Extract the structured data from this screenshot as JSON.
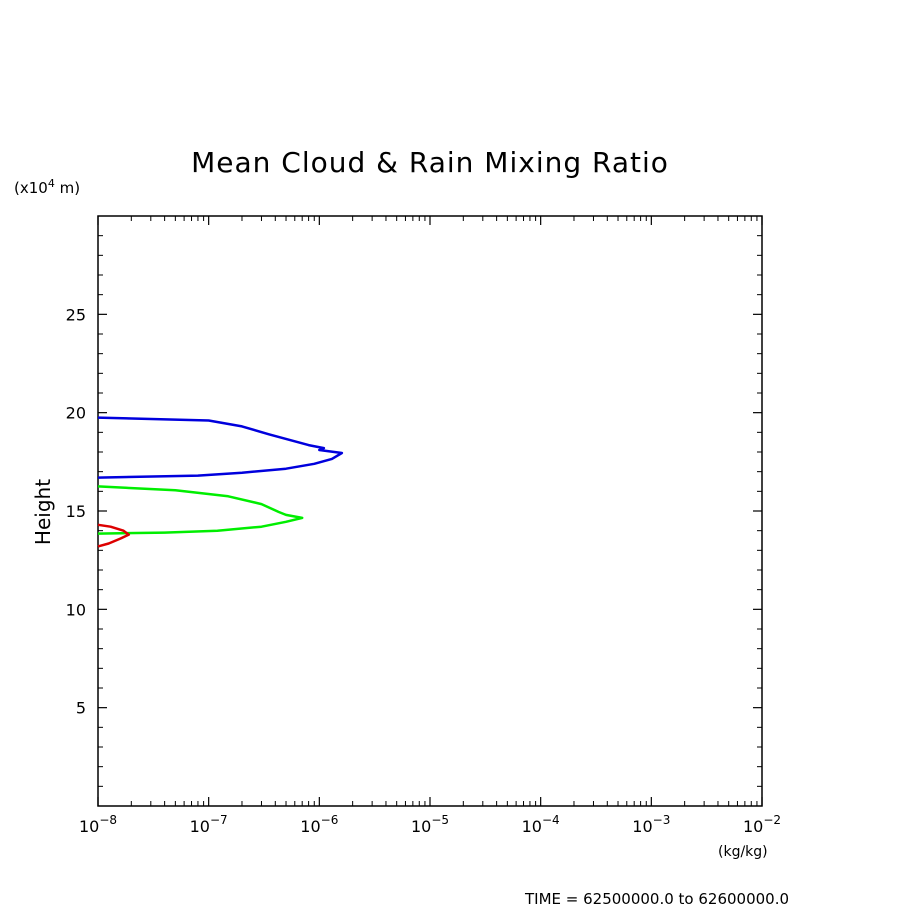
{
  "chart_data": {
    "type": "line",
    "title": "Mean Cloud & Rain Mixing Ratio",
    "ylabel": "Height",
    "y_unit": "(x10^4 m)",
    "x_unit": "(kg/kg)",
    "footer": "TIME = 62500000.0 to 62600000.0",
    "xscale": "log",
    "xlim": [
      1e-08,
      0.01
    ],
    "ylim": [
      0,
      30
    ],
    "x_tick_labels": [
      {
        "base": "10",
        "exp": "−8"
      },
      {
        "base": "10",
        "exp": "−7"
      },
      {
        "base": "10",
        "exp": "−6"
      },
      {
        "base": "10",
        "exp": "−5"
      },
      {
        "base": "10",
        "exp": "−4"
      },
      {
        "base": "10",
        "exp": "−3"
      },
      {
        "base": "10",
        "exp": "−2"
      }
    ],
    "y_tick_labels": [
      "5",
      "10",
      "15",
      "20",
      "25"
    ],
    "y_ticks": [
      5,
      10,
      15,
      20,
      25
    ],
    "grid": false,
    "legend": "none",
    "series": [
      {
        "color": "#0000dd",
        "points": [
          [
            1e-08,
            19.75
          ],
          [
            1e-07,
            19.6
          ],
          [
            2e-07,
            19.3
          ],
          [
            3.5e-07,
            18.9
          ],
          [
            5.5e-07,
            18.6
          ],
          [
            8e-07,
            18.35
          ],
          [
            1.1e-06,
            18.2
          ],
          [
            1e-06,
            18.1
          ],
          [
            1.6e-06,
            17.95
          ],
          [
            1.3e-06,
            17.65
          ],
          [
            9e-07,
            17.4
          ],
          [
            5e-07,
            17.15
          ],
          [
            2e-07,
            16.95
          ],
          [
            8e-08,
            16.8
          ],
          [
            1e-08,
            16.7
          ]
        ]
      },
      {
        "color": "#00ee00",
        "points": [
          [
            1e-08,
            16.25
          ],
          [
            5e-08,
            16.05
          ],
          [
            1.5e-07,
            15.75
          ],
          [
            3e-07,
            15.35
          ],
          [
            4.3e-07,
            14.95
          ],
          [
            5e-07,
            14.8
          ],
          [
            7e-07,
            14.65
          ],
          [
            5e-07,
            14.45
          ],
          [
            3e-07,
            14.2
          ],
          [
            1.2e-07,
            14.0
          ],
          [
            4e-08,
            13.9
          ],
          [
            1e-08,
            13.85
          ]
        ]
      },
      {
        "color": "#dd0000",
        "points": [
          [
            1e-08,
            14.3
          ],
          [
            1.3e-08,
            14.2
          ],
          [
            1.7e-08,
            14.0
          ],
          [
            1.9e-08,
            13.8
          ],
          [
            1.6e-08,
            13.6
          ],
          [
            1.25e-08,
            13.35
          ],
          [
            1e-08,
            13.2
          ]
        ]
      }
    ]
  }
}
